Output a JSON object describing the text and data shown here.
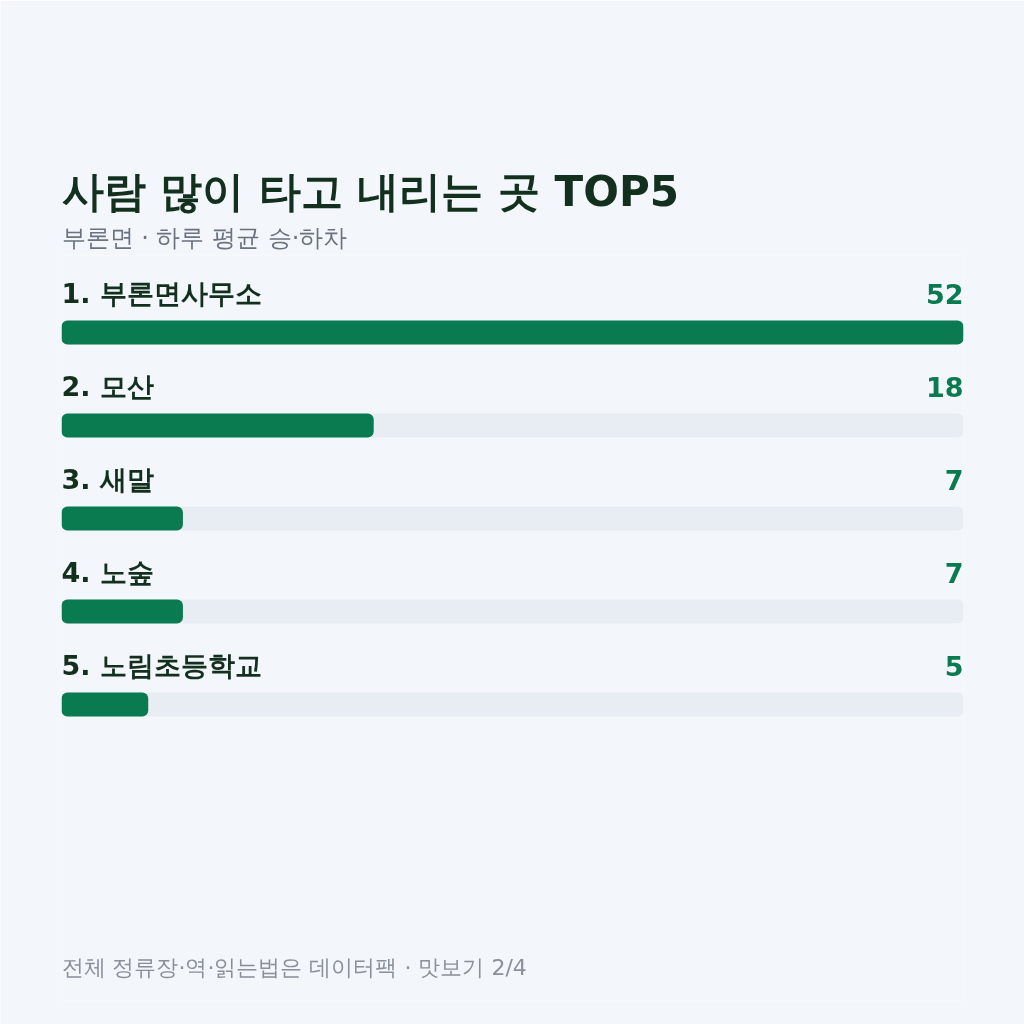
{
  "chart_data": {
    "type": "bar",
    "orientation": "horizontal",
    "title": "사람 많이 타고 내리는 곳 TOP5",
    "subtitle": "부론면 · 하루 평균 승·하차",
    "categories": [
      "1. 부론면사무소",
      "2. 모산",
      "3. 새말",
      "4. 노숲",
      "5. 노림초등학교"
    ],
    "values": [
      52,
      18,
      7,
      7,
      5
    ],
    "color": "#0a7a50",
    "xlim": [
      0,
      52
    ],
    "tick_labels": false,
    "data_labels": true,
    "annotations": [
      "전체 정류장·역·읽는법은 데이터팩 · 맛보기 2/4"
    ]
  }
}
